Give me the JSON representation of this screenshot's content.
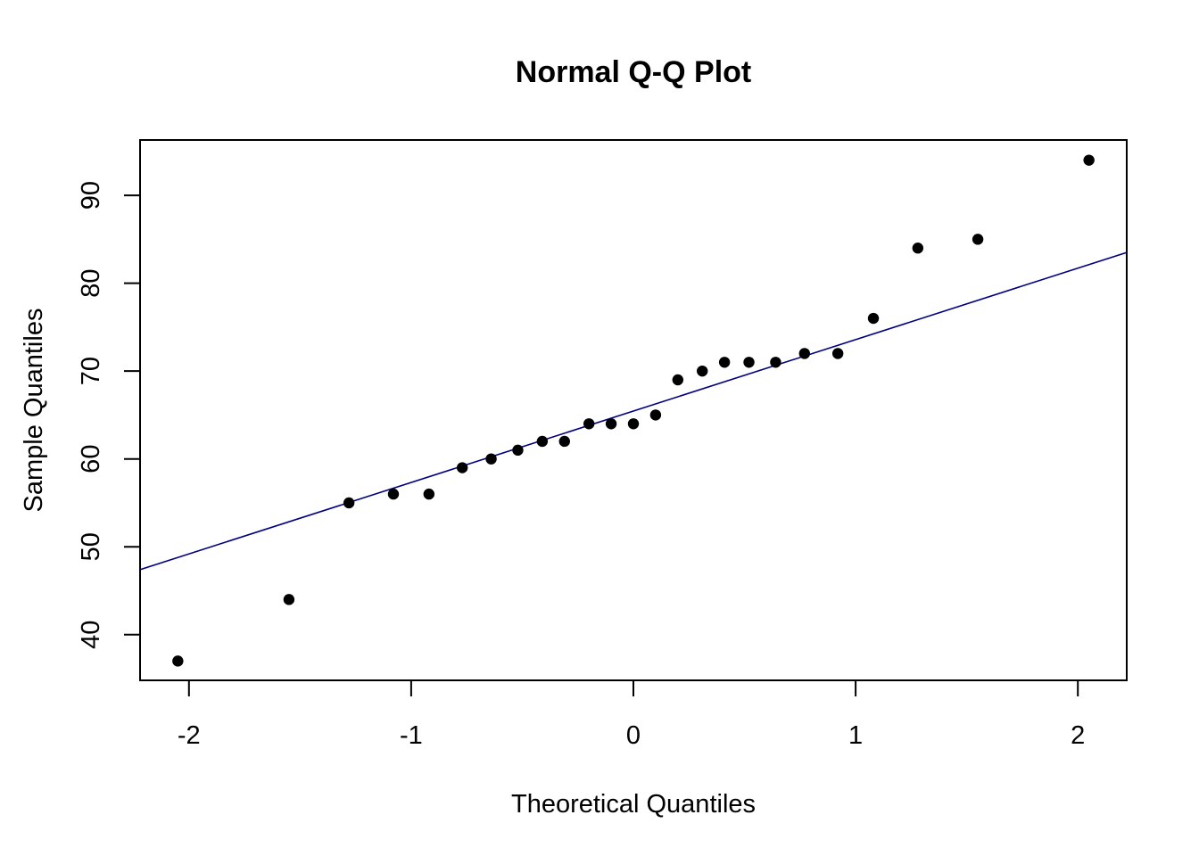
{
  "chart_data": {
    "type": "scatter",
    "title": "Normal Q-Q Plot",
    "xlabel": "Theoretical Quantiles",
    "ylabel": "Sample Quantiles",
    "xlim": [
      -2.22,
      2.22
    ],
    "ylim": [
      34.8,
      96.3
    ],
    "x_ticks": [
      -2,
      -1,
      0,
      1,
      2
    ],
    "x_tick_labels": [
      "-2",
      "-1",
      "0",
      "1",
      "2"
    ],
    "y_ticks": [
      40,
      50,
      60,
      70,
      80,
      90
    ],
    "y_tick_labels": [
      "40",
      "50",
      "60",
      "70",
      "80",
      "90"
    ],
    "grid": false,
    "point_color": "#000000",
    "line_color": "#000080",
    "series": [
      {
        "x": [
          -2.05,
          -1.55,
          -1.28,
          -1.08,
          -0.92,
          -0.77,
          -0.64,
          -0.52,
          -0.41,
          -0.31,
          -0.2,
          -0.1,
          0.0,
          0.1,
          0.2,
          0.31,
          0.41,
          0.52,
          0.64,
          0.77,
          0.92,
          1.08,
          1.28,
          1.55,
          2.05
        ],
        "y": [
          37,
          44,
          55,
          56,
          56,
          59,
          60,
          61,
          62,
          62,
          64,
          64,
          64,
          65,
          69,
          70,
          71,
          71,
          71,
          72,
          72,
          76,
          84,
          85,
          94
        ]
      }
    ],
    "reference_line": {
      "x": [
        -2.22,
        2.22
      ],
      "y": [
        47.4,
        83.5
      ]
    }
  }
}
